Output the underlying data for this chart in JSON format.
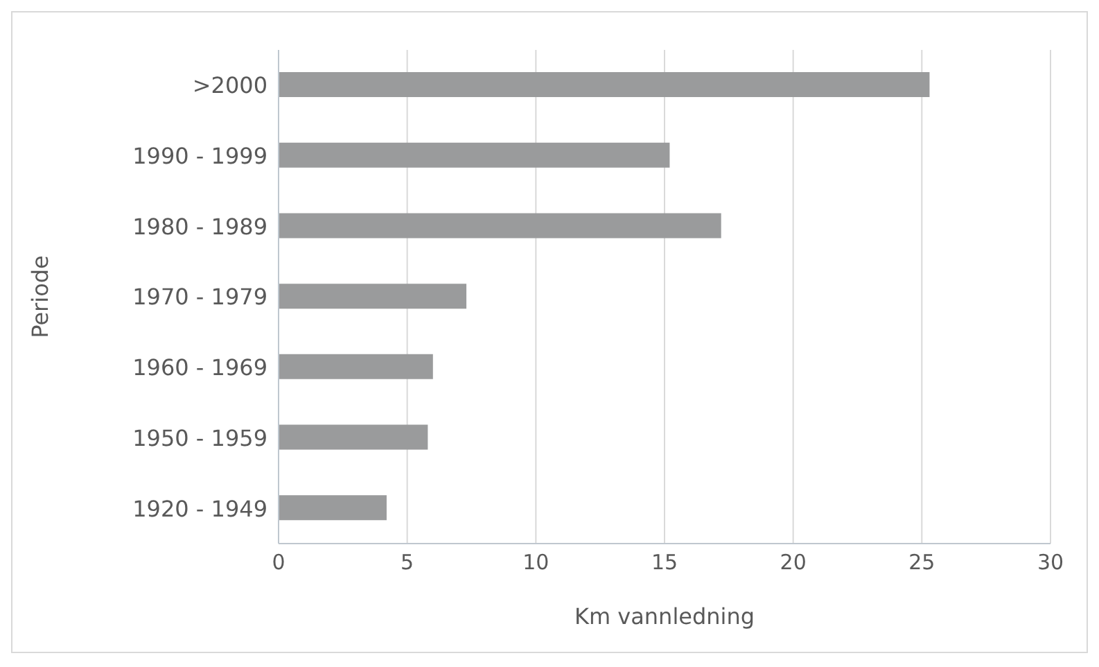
{
  "chart_data": {
    "type": "bar",
    "orientation": "horizontal",
    "xlabel": "Km vannledning",
    "ylabel": "Periode",
    "categories": [
      ">2000",
      "1990 - 1999",
      "1980 - 1989",
      "1970 - 1979",
      "1960 - 1969",
      "1950 - 1959",
      "1920 - 1949"
    ],
    "values": [
      25.3,
      15.2,
      17.2,
      7.3,
      6.0,
      5.8,
      4.2
    ],
    "color": "#9a9b9c",
    "xlim": [
      0,
      30
    ],
    "xticks": [
      0,
      5,
      10,
      15,
      20,
      25,
      30
    ],
    "grid": "x"
  }
}
